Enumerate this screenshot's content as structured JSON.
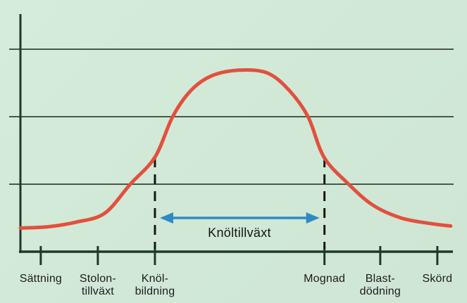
{
  "chart_data": {
    "type": "line",
    "title": "",
    "xlabel": "",
    "ylabel": "",
    "x_range_units": [
      0,
      100
    ],
    "y_range_units": [
      0,
      3
    ],
    "y_gridlines_units": [
      1,
      2,
      3
    ],
    "grid": "horizontal gridlines only, no numeric tick labels",
    "legend": "none",
    "x_stages": [
      {
        "pos": 4.7,
        "label": "Sättning"
      },
      {
        "pos": 17.9,
        "label": "Stolon-\ntillväxt"
      },
      {
        "pos": 31.1,
        "label": "Knöl-\nbildning"
      },
      {
        "pos": 70.3,
        "label": "Mognad"
      },
      {
        "pos": 83.2,
        "label": "Blast-\ndödning"
      },
      {
        "pos": 96.4,
        "label": "Skörd"
      }
    ],
    "series": [
      {
        "name": "tillvaxtkurva",
        "color": "#e2503e",
        "stroke_width": 5,
        "points": [
          [
            0,
            0.35
          ],
          [
            6.5,
            0.37
          ],
          [
            13,
            0.44
          ],
          [
            19.5,
            0.57
          ],
          [
            25.4,
            1.0
          ],
          [
            31.1,
            1.4
          ],
          [
            35.2,
            2.0
          ],
          [
            39.3,
            2.38
          ],
          [
            44,
            2.6
          ],
          [
            50.5,
            2.69
          ],
          [
            57,
            2.65
          ],
          [
            62,
            2.4
          ],
          [
            66.5,
            2.0
          ],
          [
            70.2,
            1.4
          ],
          [
            75.9,
            1.0
          ],
          [
            81.5,
            0.69
          ],
          [
            88,
            0.5
          ],
          [
            94.5,
            0.42
          ],
          [
            99.5,
            0.38
          ]
        ]
      }
    ],
    "annotation": {
      "label": "Knöltillväxt",
      "from_stage": "Knöl-bildning",
      "to_stage": "Mognad",
      "arrow": "double-headed",
      "y_units": 0.5,
      "color": "#2e8ac2"
    },
    "markers": {
      "dashed_vertical_at_stage_indices": [
        2,
        3
      ]
    },
    "colors": {
      "background": "#d2e9d7",
      "axis": "#20382a",
      "gridline": "#47584d",
      "dashed_marker": "#171717",
      "text": "#1c1c1c",
      "curve": "#e2503e",
      "arrow": "#2e8ac2"
    }
  }
}
